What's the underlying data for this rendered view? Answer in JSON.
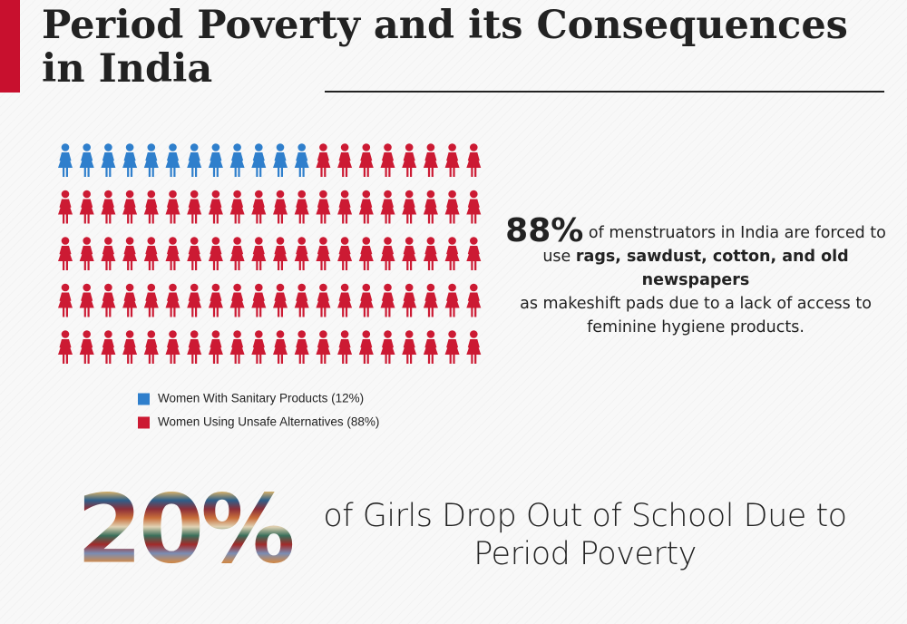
{
  "header": {
    "title_lines": [
      "Period Poverty and its Consequences",
      "in India"
    ]
  },
  "chart_data": {
    "type": "pictogram",
    "series": [
      {
        "name": "Women With Sanitary Products (12%)",
        "color": "#2f7fcc",
        "values": [
          12
        ]
      },
      {
        "name": "Women Using Unsafe Alternatives (88%)",
        "color": "#cc1a33",
        "values": [
          88
        ]
      }
    ]
  },
  "callout_1": {
    "stat": "88%",
    "text": [
      "of menstruators in India are forced to",
      "use",
      "rags, sawdust, cotton, and old newspapers",
      "as makeshift pads due to a lack of access to",
      "feminine hygiene products."
    ]
  },
  "callout_2": {
    "stat": "20%",
    "text": "of Girls Drop Out of School Due to Period Poverty"
  }
}
